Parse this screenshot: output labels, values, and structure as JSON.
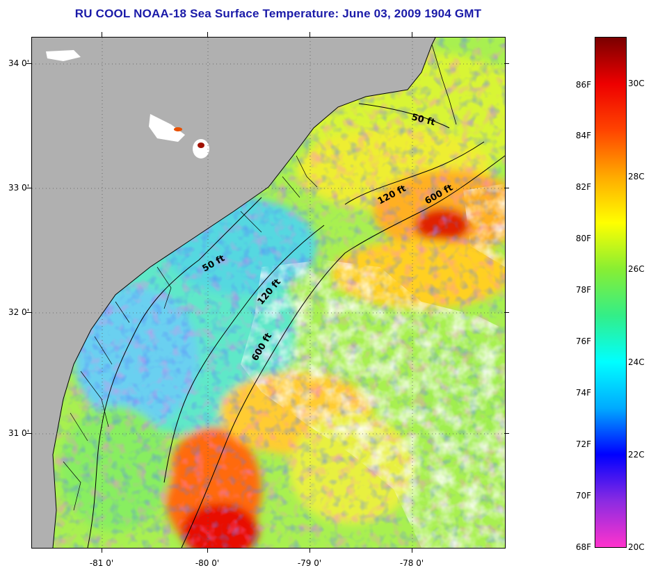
{
  "title": "RU COOL  NOAA-18  Sea Surface Temperature:  June 03, 2009 1904 GMT",
  "latitude_labels": [
    "34 0'",
    "33 0'",
    "32 0'",
    "31 0'"
  ],
  "longitude_labels": [
    "-81 0'",
    "-80 0'",
    "-79 0'",
    "-78 0'"
  ],
  "contours": {
    "isobath_50_north": "50 ft",
    "isobath_120_north": "120 ft",
    "isobath_600_north": "600 ft",
    "isobath_50_south": "50 ft",
    "isobath_120_south": "120 ft",
    "isobath_600_south": "600 ft"
  },
  "colorbar": {
    "fahrenheit": [
      "86F",
      "84F",
      "82F",
      "80F",
      "78F",
      "76F",
      "74F",
      "72F",
      "70F",
      "68F"
    ],
    "celsius": [
      "30C",
      "28C",
      "26C",
      "24C",
      "22C",
      "20C"
    ],
    "colors": [
      "#ff33cc",
      "#8a2be2",
      "#0000ff",
      "#00aaff",
      "#00ffff",
      "#33ee88",
      "#88ee33",
      "#ffff00",
      "#ffaa00",
      "#ff4400",
      "#ee0000",
      "#7a0000"
    ]
  },
  "palette": {
    "land": "#b0b0b0",
    "cloud": "#ffffff",
    "title": "#1a1aa8"
  }
}
